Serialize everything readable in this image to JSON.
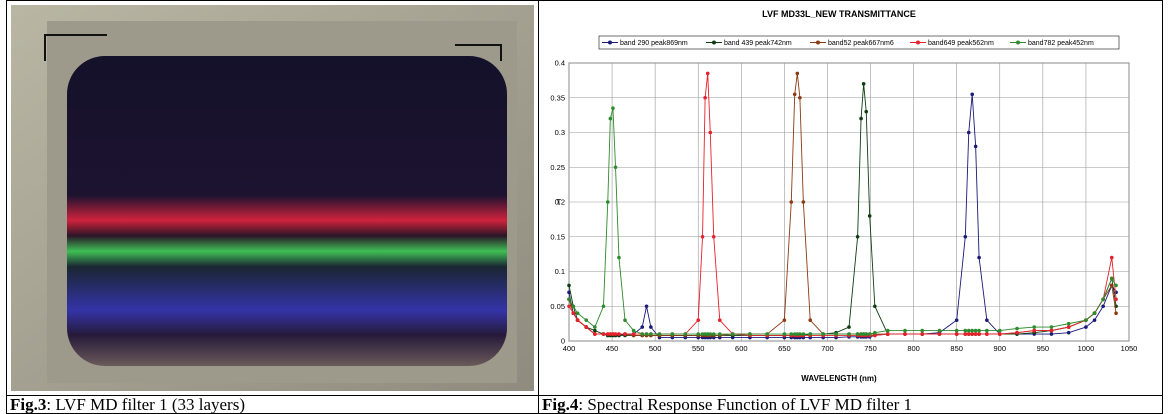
{
  "captions": [
    {
      "label": "Fig.3",
      "text": ": LVF MD filter 1 (33 layers)"
    },
    {
      "label": "Fig.4",
      "text": ": Spectral Response Function of LVF MD filter 1"
    }
  ],
  "chart_data": {
    "type": "line",
    "title": "LVF  MD33L_NEW TRANSMITTANCE",
    "xlabel": "WAVELENGTH (nm)",
    "ylabel": "T",
    "x": [
      400,
      405,
      410,
      420,
      430,
      440,
      445,
      448,
      451,
      454,
      458,
      465,
      475,
      485,
      490,
      495,
      505,
      520,
      535,
      550,
      555,
      558,
      561,
      564,
      568,
      575,
      590,
      610,
      630,
      650,
      658,
      662,
      665,
      668,
      672,
      680,
      695,
      710,
      725,
      735,
      739,
      742,
      745,
      749,
      755,
      770,
      790,
      810,
      830,
      850,
      860,
      864,
      868,
      872,
      876,
      885,
      900,
      920,
      940,
      960,
      980,
      1000,
      1010,
      1020,
      1030,
      1035
    ],
    "series": [
      {
        "name": "band 290 peak869nm",
        "color": "#1a1a7a",
        "values": [
          0.07,
          0.04,
          0.03,
          0.02,
          0.01,
          0.01,
          0.008,
          0.008,
          0.008,
          0.008,
          0.008,
          0.01,
          0.01,
          0.02,
          0.05,
          0.02,
          0.005,
          0.005,
          0.005,
          0.005,
          0.005,
          0.005,
          0.005,
          0.005,
          0.005,
          0.005,
          0.005,
          0.005,
          0.005,
          0.005,
          0.005,
          0.005,
          0.005,
          0.005,
          0.005,
          0.005,
          0.005,
          0.005,
          0.006,
          0.006,
          0.006,
          0.006,
          0.006,
          0.006,
          0.008,
          0.01,
          0.01,
          0.01,
          0.012,
          0.03,
          0.15,
          0.3,
          0.355,
          0.28,
          0.12,
          0.03,
          0.01,
          0.01,
          0.01,
          0.01,
          0.012,
          0.02,
          0.03,
          0.05,
          0.08,
          0.07
        ]
      },
      {
        "name": "band 439 peak742nm",
        "color": "#0f3d12",
        "values": [
          0.08,
          0.05,
          0.03,
          0.02,
          0.015,
          0.01,
          0.008,
          0.008,
          0.008,
          0.008,
          0.008,
          0.008,
          0.008,
          0.008,
          0.008,
          0.008,
          0.008,
          0.008,
          0.008,
          0.008,
          0.008,
          0.008,
          0.008,
          0.008,
          0.008,
          0.008,
          0.008,
          0.008,
          0.008,
          0.008,
          0.008,
          0.008,
          0.008,
          0.008,
          0.008,
          0.01,
          0.01,
          0.012,
          0.02,
          0.15,
          0.32,
          0.37,
          0.33,
          0.18,
          0.05,
          0.01,
          0.01,
          0.01,
          0.01,
          0.01,
          0.01,
          0.01,
          0.01,
          0.01,
          0.01,
          0.01,
          0.01,
          0.01,
          0.012,
          0.015,
          0.02,
          0.03,
          0.04,
          0.06,
          0.09,
          0.05
        ]
      },
      {
        "name": "band52 peak667nm6",
        "color": "#8b3a12",
        "values": [
          0.06,
          0.04,
          0.03,
          0.02,
          0.01,
          0.01,
          0.01,
          0.01,
          0.01,
          0.01,
          0.01,
          0.01,
          0.008,
          0.008,
          0.008,
          0.008,
          0.008,
          0.008,
          0.008,
          0.008,
          0.008,
          0.008,
          0.008,
          0.008,
          0.008,
          0.008,
          0.01,
          0.01,
          0.01,
          0.03,
          0.2,
          0.355,
          0.385,
          0.35,
          0.2,
          0.03,
          0.01,
          0.01,
          0.01,
          0.01,
          0.01,
          0.01,
          0.01,
          0.01,
          0.01,
          0.01,
          0.01,
          0.01,
          0.01,
          0.01,
          0.01,
          0.01,
          0.01,
          0.01,
          0.01,
          0.01,
          0.01,
          0.012,
          0.015,
          0.015,
          0.02,
          0.03,
          0.04,
          0.06,
          0.08,
          0.04
        ]
      },
      {
        "name": "band649 peak562nm",
        "color": "#e8202a",
        "values": [
          0.05,
          0.04,
          0.03,
          0.02,
          0.01,
          0.01,
          0.01,
          0.01,
          0.01,
          0.01,
          0.01,
          0.01,
          0.01,
          0.01,
          0.01,
          0.01,
          0.01,
          0.01,
          0.01,
          0.03,
          0.15,
          0.35,
          0.385,
          0.3,
          0.15,
          0.03,
          0.01,
          0.008,
          0.008,
          0.008,
          0.008,
          0.008,
          0.008,
          0.008,
          0.008,
          0.008,
          0.008,
          0.008,
          0.008,
          0.008,
          0.008,
          0.008,
          0.008,
          0.008,
          0.008,
          0.01,
          0.01,
          0.01,
          0.01,
          0.01,
          0.01,
          0.01,
          0.01,
          0.01,
          0.01,
          0.01,
          0.01,
          0.012,
          0.015,
          0.015,
          0.02,
          0.03,
          0.04,
          0.06,
          0.12,
          0.06
        ]
      },
      {
        "name": "band782 peak452nm",
        "color": "#2e8b2e",
        "values": [
          0.06,
          0.05,
          0.04,
          0.03,
          0.02,
          0.05,
          0.2,
          0.32,
          0.335,
          0.25,
          0.12,
          0.03,
          0.015,
          0.01,
          0.01,
          0.01,
          0.01,
          0.01,
          0.01,
          0.01,
          0.01,
          0.01,
          0.01,
          0.01,
          0.01,
          0.01,
          0.01,
          0.01,
          0.01,
          0.01,
          0.01,
          0.01,
          0.01,
          0.01,
          0.01,
          0.01,
          0.01,
          0.01,
          0.01,
          0.01,
          0.01,
          0.01,
          0.01,
          0.01,
          0.012,
          0.015,
          0.015,
          0.015,
          0.015,
          0.015,
          0.015,
          0.015,
          0.015,
          0.015,
          0.015,
          0.015,
          0.015,
          0.018,
          0.02,
          0.02,
          0.025,
          0.03,
          0.04,
          0.06,
          0.09,
          0.08
        ]
      }
    ],
    "xlim": [
      400,
      1050
    ],
    "xticks": [
      400,
      450,
      500,
      550,
      600,
      650,
      700,
      750,
      800,
      850,
      900,
      950,
      1000,
      1050
    ],
    "ylim": [
      0,
      0.4
    ],
    "yticks": [
      0,
      0.05,
      0.1,
      0.15,
      0.2,
      0.25,
      0.3,
      0.35,
      0.4
    ],
    "grid": true,
    "legend": "top"
  }
}
